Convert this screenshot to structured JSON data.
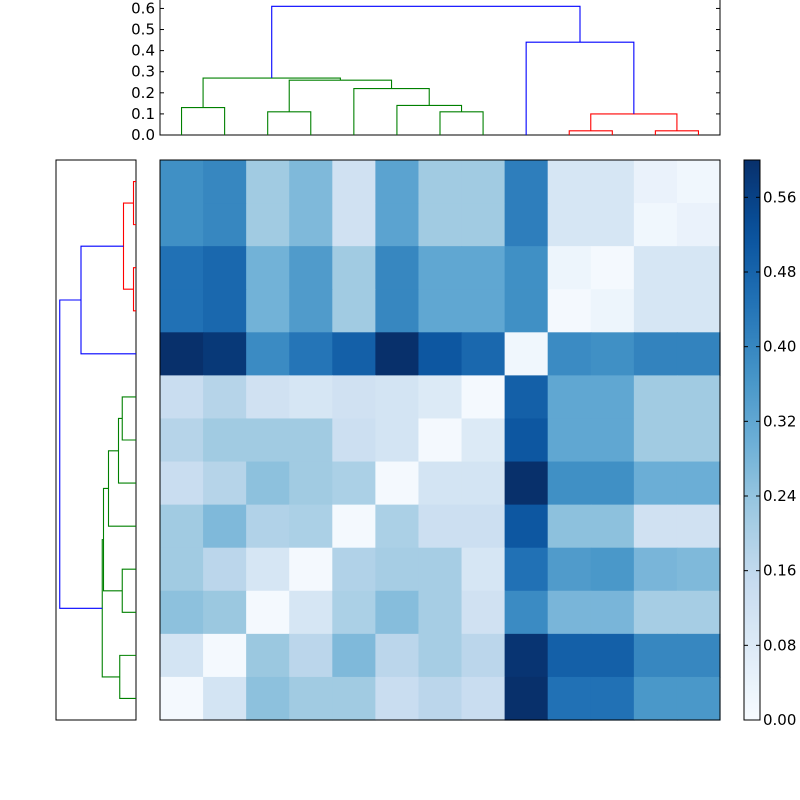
{
  "chart_data": {
    "type": "heatmap",
    "title": "",
    "xlabel": "",
    "ylabel": "",
    "n": 13,
    "colormap": "Blues",
    "matrix": [
      [
        0.38,
        0.4,
        0.22,
        0.27,
        0.12,
        0.33,
        0.22,
        0.22,
        0.42,
        0.1,
        0.1,
        0.04,
        0.02
      ],
      [
        0.38,
        0.4,
        0.22,
        0.27,
        0.12,
        0.33,
        0.22,
        0.22,
        0.42,
        0.1,
        0.1,
        0.02,
        0.04
      ],
      [
        0.45,
        0.47,
        0.29,
        0.35,
        0.22,
        0.4,
        0.32,
        0.32,
        0.38,
        0.03,
        0.01,
        0.1,
        0.1
      ],
      [
        0.45,
        0.47,
        0.29,
        0.35,
        0.22,
        0.4,
        0.32,
        0.32,
        0.38,
        0.01,
        0.03,
        0.1,
        0.1
      ],
      [
        0.6,
        0.58,
        0.39,
        0.44,
        0.49,
        0.6,
        0.51,
        0.47,
        0.02,
        0.39,
        0.38,
        0.41,
        0.41
      ],
      [
        0.14,
        0.18,
        0.12,
        0.1,
        0.12,
        0.11,
        0.08,
        0.01,
        0.49,
        0.32,
        0.32,
        0.22,
        0.22
      ],
      [
        0.18,
        0.22,
        0.22,
        0.22,
        0.13,
        0.11,
        0.01,
        0.08,
        0.51,
        0.32,
        0.32,
        0.22,
        0.22
      ],
      [
        0.14,
        0.18,
        0.25,
        0.22,
        0.2,
        0.01,
        0.11,
        0.11,
        0.6,
        0.38,
        0.38,
        0.3,
        0.3
      ],
      [
        0.22,
        0.27,
        0.19,
        0.2,
        0.01,
        0.2,
        0.13,
        0.13,
        0.51,
        0.25,
        0.25,
        0.12,
        0.12
      ],
      [
        0.22,
        0.17,
        0.1,
        0.01,
        0.19,
        0.21,
        0.21,
        0.1,
        0.45,
        0.35,
        0.36,
        0.28,
        0.27
      ],
      [
        0.25,
        0.23,
        0.01,
        0.1,
        0.2,
        0.26,
        0.21,
        0.12,
        0.39,
        0.28,
        0.28,
        0.21,
        0.21
      ],
      [
        0.11,
        0.01,
        0.23,
        0.17,
        0.27,
        0.17,
        0.21,
        0.17,
        0.59,
        0.49,
        0.49,
        0.4,
        0.4
      ],
      [
        0.01,
        0.11,
        0.25,
        0.22,
        0.22,
        0.14,
        0.17,
        0.14,
        0.6,
        0.45,
        0.45,
        0.36,
        0.36
      ]
    ],
    "colorbar": {
      "range": [
        0.0,
        0.6
      ],
      "ticks": [
        "0.00",
        "0.08",
        "0.16",
        "0.24",
        "0.32",
        "0.40",
        "0.48",
        "0.56"
      ]
    },
    "top_dendrogram": {
      "yticks": [
        "0.0",
        "0.1",
        "0.2",
        "0.3",
        "0.4",
        "0.5",
        "0.6"
      ],
      "ylim": [
        0,
        0.64
      ],
      "links": [
        {
          "x": [
            0.5,
            0.5,
            1.5,
            1.5
          ],
          "y": [
            0,
            0.13,
            0.13,
            0
          ],
          "color": "#008000"
        },
        {
          "x": [
            2.5,
            2.5,
            3.5,
            3.5
          ],
          "y": [
            0,
            0.11,
            0.11,
            0
          ],
          "color": "#008000"
        },
        {
          "x": [
            6.5,
            6.5,
            7.5,
            7.5
          ],
          "y": [
            0,
            0.11,
            0.11,
            0
          ],
          "color": "#008000"
        },
        {
          "x": [
            5.5,
            5.5,
            7.0,
            7.0
          ],
          "y": [
            0,
            0.14,
            0.14,
            0.11
          ],
          "color": "#008000"
        },
        {
          "x": [
            4.5,
            4.5,
            6.25,
            6.25
          ],
          "y": [
            0,
            0.22,
            0.22,
            0.14
          ],
          "color": "#008000"
        },
        {
          "x": [
            3.0,
            3.0,
            5.375,
            5.375
          ],
          "y": [
            0.11,
            0.26,
            0.26,
            0.22
          ],
          "color": "#008000"
        },
        {
          "x": [
            1.0,
            1.0,
            4.1875,
            4.1875
          ],
          "y": [
            0.13,
            0.27,
            0.27,
            0.26
          ],
          "color": "#008000"
        },
        {
          "x": [
            9.5,
            9.5,
            10.5,
            10.5
          ],
          "y": [
            0,
            0.02,
            0.02,
            0
          ],
          "color": "#ff0000"
        },
        {
          "x": [
            11.5,
            11.5,
            12.5,
            12.5
          ],
          "y": [
            0,
            0.02,
            0.02,
            0
          ],
          "color": "#ff0000"
        },
        {
          "x": [
            10.0,
            10.0,
            12.0,
            12.0
          ],
          "y": [
            0.02,
            0.1,
            0.1,
            0.02
          ],
          "color": "#ff0000"
        },
        {
          "x": [
            8.5,
            8.5,
            11.0,
            11.0
          ],
          "y": [
            0,
            0.44,
            0.44,
            0.1
          ],
          "color": "#0000ff"
        },
        {
          "x": [
            2.59375,
            2.59375,
            9.75,
            9.75
          ],
          "y": [
            0.27,
            0.61,
            0.61,
            0.44
          ],
          "color": "#0000ff"
        }
      ]
    },
    "left_dendrogram": {
      "xlim": [
        0,
        0.64
      ],
      "links": [
        {
          "y": [
            0.5,
            0.5,
            1.5,
            1.5
          ],
          "x": [
            0,
            0.02,
            0.02,
            0
          ],
          "color": "#ff0000"
        },
        {
          "y": [
            2.5,
            2.5,
            3.5,
            3.5
          ],
          "x": [
            0,
            0.02,
            0.02,
            0
          ],
          "color": "#ff0000"
        },
        {
          "y": [
            1.0,
            1.0,
            3.0,
            3.0
          ],
          "x": [
            0.02,
            0.1,
            0.1,
            0.02
          ],
          "color": "#ff0000"
        },
        {
          "y": [
            2.0,
            2.0,
            4.5,
            4.5
          ],
          "x": [
            0.1,
            0.44,
            0.44,
            0
          ],
          "color": "#0000ff"
        },
        {
          "y": [
            5.5,
            5.5,
            6.5,
            6.5
          ],
          "x": [
            0,
            0.11,
            0.11,
            0
          ],
          "color": "#008000"
        },
        {
          "y": [
            6.0,
            6.0,
            7.5,
            7.5
          ],
          "x": [
            0.11,
            0.14,
            0.14,
            0
          ],
          "color": "#008000"
        },
        {
          "y": [
            6.75,
            6.75,
            8.5,
            8.5
          ],
          "x": [
            0.14,
            0.22,
            0.22,
            0
          ],
          "color": "#008000"
        },
        {
          "y": [
            9.5,
            9.5,
            10.5,
            10.5
          ],
          "x": [
            0,
            0.11,
            0.11,
            0
          ],
          "color": "#008000"
        },
        {
          "y": [
            7.625,
            7.625,
            10.0,
            10.0
          ],
          "x": [
            0.22,
            0.26,
            0.26,
            0.11
          ],
          "color": "#008000"
        },
        {
          "y": [
            11.5,
            11.5,
            12.5,
            12.5
          ],
          "x": [
            0,
            0.13,
            0.13,
            0
          ],
          "color": "#008000"
        },
        {
          "y": [
            8.8125,
            8.8125,
            12.0,
            12.0
          ],
          "x": [
            0.26,
            0.27,
            0.27,
            0.13
          ],
          "color": "#008000"
        },
        {
          "y": [
            3.25,
            3.25,
            10.40625,
            10.40625
          ],
          "x": [
            0.44,
            0.61,
            0.61,
            0.27
          ],
          "color": "#0000ff"
        }
      ]
    }
  }
}
